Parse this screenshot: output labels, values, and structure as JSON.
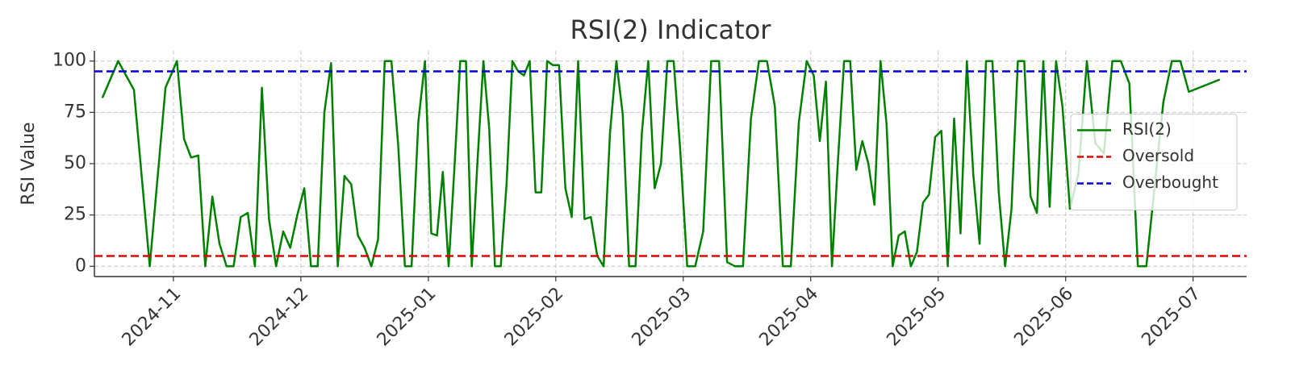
{
  "chart_data": {
    "type": "line",
    "title": "RSI(2) Indicator",
    "y_label": "RSI Value",
    "x": [
      "2024-10",
      "2024-10",
      "2024-10",
      "2024-10",
      "2024-10",
      "2024-11",
      "2024-11",
      "2024-11",
      "2024-11",
      "2024-11",
      "2024-11",
      "2024-11",
      "2024-11",
      "2024-11",
      "2024-11",
      "2024-11",
      "2024-11",
      "2024-11",
      "2024-11",
      "2024-11",
      "2024-11",
      "2024-11",
      "2024-11",
      "2024-12",
      "2024-12",
      "2024-12",
      "2024-12",
      "2024-12",
      "2024-12",
      "2024-12",
      "2024-12",
      "2024-12",
      "2024-12",
      "2024-12",
      "2024-12",
      "2024-12",
      "2024-12",
      "2024-12",
      "2024-12",
      "2024-12",
      "2024-12",
      "2024-12",
      "2025-01",
      "2025-01",
      "2025-01",
      "2025-01",
      "2025-01",
      "2025-01",
      "2025-01",
      "2025-01",
      "2025-01",
      "2025-01",
      "2025-01",
      "2025-01",
      "2025-01",
      "2025-01",
      "2025-01",
      "2025-01",
      "2025-01",
      "2025-01",
      "2025-01",
      "2025-01",
      "2025-01",
      "2025-01",
      "2025-02",
      "2025-02",
      "2025-02",
      "2025-02",
      "2025-02",
      "2025-02",
      "2025-02",
      "2025-02",
      "2025-02",
      "2025-02",
      "2025-02",
      "2025-02",
      "2025-02",
      "2025-02",
      "2025-02",
      "2025-02",
      "2025-02",
      "2025-02",
      "2025-02",
      "2025-02",
      "2025-03",
      "2025-03",
      "2025-03",
      "2025-03",
      "2025-03",
      "2025-03",
      "2025-03",
      "2025-03",
      "2025-03",
      "2025-03",
      "2025-03",
      "2025-03",
      "2025-03",
      "2025-03",
      "2025-03",
      "2025-03",
      "2025-04",
      "2025-04",
      "2025-04",
      "2025-04",
      "2025-04",
      "2025-04",
      "2025-04",
      "2025-04",
      "2025-04",
      "2025-04",
      "2025-04",
      "2025-04",
      "2025-04",
      "2025-04",
      "2025-04",
      "2025-04",
      "2025-04",
      "2025-04",
      "2025-04",
      "2025-04",
      "2025-04",
      "2025-05",
      "2025-05",
      "2025-05",
      "2025-05",
      "2025-05",
      "2025-05",
      "2025-05",
      "2025-05",
      "2025-05",
      "2025-05",
      "2025-05",
      "2025-05",
      "2025-05",
      "2025-05",
      "2025-05",
      "2025-05",
      "2025-05",
      "2025-05",
      "2025-05",
      "2025-05",
      "2025-06",
      "2025-06",
      "2025-06",
      "2025-06",
      "2025-06",
      "2025-06",
      "2025-06",
      "2025-06",
      "2025-06",
      "2025-06",
      "2025-06",
      "2025-06",
      "2025-06",
      "2025-06",
      "2025-06",
      "2025-07"
    ],
    "series": [
      {
        "name": "RSI(2)",
        "color": "#008000",
        "values": [
          82,
          100,
          86,
          0,
          87,
          100,
          62,
          53,
          54,
          0,
          34,
          11,
          0,
          0,
          24,
          26,
          0,
          87,
          23,
          0,
          17,
          9,
          25,
          38,
          0,
          0,
          75,
          99,
          0,
          44,
          40,
          15,
          9,
          0,
          13,
          100,
          100,
          59,
          0,
          0,
          70,
          100,
          16,
          15,
          46,
          0,
          48,
          100,
          100,
          0,
          52,
          100,
          67,
          0,
          0,
          40,
          100,
          95,
          93,
          100,
          36,
          36,
          100,
          98,
          98,
          38,
          24,
          100,
          23,
          24,
          5,
          0,
          65,
          100,
          74,
          0,
          0,
          65,
          100,
          38,
          50,
          100,
          100,
          58,
          0,
          0,
          17,
          100,
          100,
          2,
          0,
          0,
          72,
          100,
          100,
          78,
          0,
          0,
          70,
          100,
          93,
          61,
          90,
          0,
          52,
          100,
          100,
          47,
          61,
          50,
          30,
          100,
          69,
          0,
          15,
          17,
          0,
          7,
          31,
          35,
          63,
          66,
          0,
          72,
          16,
          100,
          45,
          11,
          100,
          100,
          36,
          0,
          28,
          100,
          100,
          34,
          26,
          100,
          29,
          100,
          78,
          28,
          45,
          100,
          60,
          55,
          100,
          100,
          89,
          0,
          0,
          40,
          80,
          100,
          100,
          85,
          91
        ]
      }
    ],
    "hlines": [
      {
        "name": "Oversold",
        "value": 5,
        "color": "#e00000",
        "style": "dashed"
      },
      {
        "name": "Overbought",
        "value": 95,
        "color": "#0000dd",
        "style": "dashed"
      }
    ],
    "xticks": [
      "2024-11",
      "2024-12",
      "2025-01",
      "2025-02",
      "2025-03",
      "2025-04",
      "2025-05",
      "2025-06",
      "2025-07"
    ],
    "ylim": [
      -5,
      105
    ],
    "yticks": [
      0,
      25,
      50,
      75,
      100
    ],
    "grid": true,
    "legend": "right"
  }
}
